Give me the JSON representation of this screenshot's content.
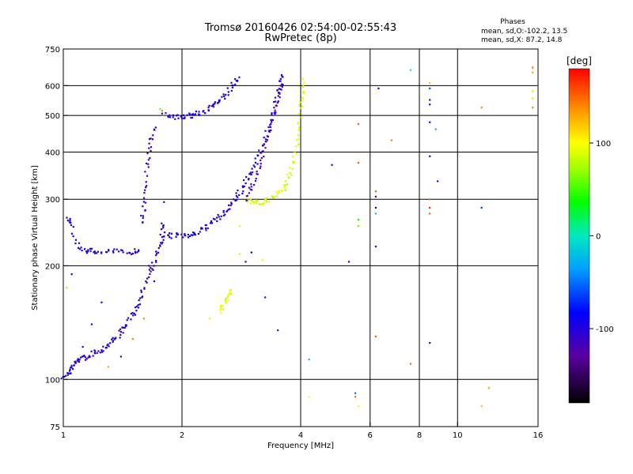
{
  "chart_data": {
    "type": "scatter",
    "title": "Tromsø 20160426 02:54:00-02:55:43",
    "subtitle": "RwPretec (8p)",
    "xlabel": "Frequency [MHz]",
    "ylabel": "Stationary phase Virtual Height [km]",
    "x_scale": "log",
    "y_scale": "log",
    "xlim": [
      1,
      16
    ],
    "ylim": [
      75,
      750
    ],
    "x_ticks": [
      1,
      2,
      4,
      6,
      8,
      10,
      16
    ],
    "y_ticks": [
      75,
      100,
      200,
      300,
      400,
      500,
      600,
      750
    ],
    "x_gridlines": [
      2,
      4,
      6,
      8,
      10
    ],
    "y_gridlines": [
      100,
      200,
      300,
      400,
      500,
      600
    ],
    "grid": true,
    "info": {
      "heading": "Phases",
      "line1": "mean, sd,O:-102.2, 13.5",
      "line2": "mean, sd,X:  87.2, 14.8"
    },
    "colorbar": {
      "label": "[deg]",
      "range": [
        -180,
        180
      ],
      "ticks": [
        {
          "value": 100,
          "label": "100"
        },
        {
          "value": 0,
          "label": "0"
        },
        {
          "value": -100,
          "label": "-100"
        }
      ]
    },
    "colors": {
      "o_mode": "#1e22e6",
      "x_mode": "#f0f014"
    },
    "traces": [
      {
        "mode": "O",
        "phase": -105,
        "points": [
          [
            1.0,
            102
          ],
          [
            1.03,
            104
          ],
          [
            1.06,
            108
          ],
          [
            1.08,
            112
          ],
          [
            1.1,
            113
          ],
          [
            1.15,
            115
          ],
          [
            1.2,
            118
          ],
          [
            1.25,
            120
          ],
          [
            1.3,
            124
          ],
          [
            1.35,
            128
          ],
          [
            1.4,
            133
          ],
          [
            1.45,
            140
          ],
          [
            1.5,
            148
          ],
          [
            1.55,
            160
          ],
          [
            1.6,
            175
          ],
          [
            1.65,
            190
          ],
          [
            1.7,
            205
          ],
          [
            1.75,
            225
          ],
          [
            1.78,
            240
          ],
          [
            1.8,
            262
          ]
        ]
      },
      {
        "mode": "O",
        "phase": -100,
        "points": [
          [
            1.02,
            270
          ],
          [
            1.05,
            255
          ],
          [
            1.1,
            225
          ],
          [
            1.15,
            219
          ],
          [
            1.2,
            218
          ],
          [
            1.3,
            218
          ],
          [
            1.4,
            218
          ],
          [
            1.5,
            218
          ],
          [
            1.55,
            219
          ]
        ]
      },
      {
        "mode": "O",
        "phase": -110,
        "points": [
          [
            1.58,
            262
          ],
          [
            1.6,
            285
          ],
          [
            1.62,
            330
          ],
          [
            1.64,
            385
          ],
          [
            1.67,
            430
          ],
          [
            1.7,
            470
          ]
        ]
      },
      {
        "mode": "O",
        "phase": -100,
        "points": [
          [
            1.8,
            242
          ],
          [
            1.9,
            240
          ],
          [
            2.0,
            240
          ],
          [
            2.1,
            242
          ],
          [
            2.2,
            246
          ],
          [
            2.3,
            252
          ],
          [
            2.4,
            260
          ],
          [
            2.5,
            270
          ],
          [
            2.6,
            282
          ],
          [
            2.7,
            296
          ],
          [
            2.8,
            312
          ],
          [
            2.9,
            332
          ],
          [
            3.0,
            355
          ],
          [
            3.1,
            382
          ],
          [
            3.2,
            415
          ],
          [
            3.3,
            455
          ],
          [
            3.4,
            505
          ],
          [
            3.5,
            565
          ],
          [
            3.55,
            610
          ],
          [
            3.6,
            650
          ]
        ]
      },
      {
        "mode": "O",
        "phase": -120,
        "points": [
          [
            2.9,
            300
          ],
          [
            3.0,
            320
          ],
          [
            3.1,
            350
          ],
          [
            3.2,
            390
          ],
          [
            3.3,
            440
          ],
          [
            3.4,
            500
          ],
          [
            3.5,
            560
          ],
          [
            3.6,
            620
          ]
        ]
      },
      {
        "mode": "O",
        "phase": -100,
        "points": [
          [
            1.8,
            500
          ],
          [
            1.9,
            495
          ],
          [
            2.0,
            495
          ],
          [
            2.1,
            500
          ],
          [
            2.2,
            505
          ],
          [
            2.3,
            515
          ],
          [
            2.4,
            530
          ],
          [
            2.5,
            550
          ],
          [
            2.6,
            575
          ],
          [
            2.7,
            605
          ],
          [
            2.8,
            630
          ]
        ]
      },
      {
        "mode": "X",
        "phase": 88,
        "points": [
          [
            2.95,
            297
          ],
          [
            3.05,
            294
          ],
          [
            3.15,
            294
          ],
          [
            3.3,
            298
          ],
          [
            3.45,
            305
          ],
          [
            3.6,
            318
          ],
          [
            3.7,
            335
          ],
          [
            3.8,
            365
          ],
          [
            3.9,
            410
          ],
          [
            3.95,
            460
          ],
          [
            4.0,
            520
          ],
          [
            4.02,
            570
          ],
          [
            4.05,
            630
          ]
        ]
      },
      {
        "mode": "X",
        "phase": 88,
        "points": [
          [
            2.5,
            150
          ],
          [
            2.55,
            158
          ],
          [
            2.6,
            165
          ],
          [
            2.65,
            172
          ]
        ]
      }
    ],
    "scatter": [
      {
        "x": 1.02,
        "y": 175,
        "phase": 120
      },
      {
        "x": 1.05,
        "y": 190,
        "phase": -100
      },
      {
        "x": 1.12,
        "y": 122,
        "phase": -100
      },
      {
        "x": 1.18,
        "y": 140,
        "phase": -105
      },
      {
        "x": 1.25,
        "y": 160,
        "phase": -100
      },
      {
        "x": 1.3,
        "y": 108,
        "phase": 130
      },
      {
        "x": 1.4,
        "y": 115,
        "phase": -110
      },
      {
        "x": 1.5,
        "y": 128,
        "phase": 140
      },
      {
        "x": 1.55,
        "y": 155,
        "phase": -100
      },
      {
        "x": 1.6,
        "y": 145,
        "phase": 140
      },
      {
        "x": 1.65,
        "y": 200,
        "phase": -100
      },
      {
        "x": 1.7,
        "y": 182,
        "phase": -105
      },
      {
        "x": 1.72,
        "y": 218,
        "phase": -110
      },
      {
        "x": 1.76,
        "y": 520,
        "phase": 60
      },
      {
        "x": 1.78,
        "y": 515,
        "phase": 140
      },
      {
        "x": 1.8,
        "y": 295,
        "phase": -100
      },
      {
        "x": 2.35,
        "y": 145,
        "phase": 88
      },
      {
        "x": 2.8,
        "y": 255,
        "phase": 95
      },
      {
        "x": 2.8,
        "y": 215,
        "phase": 88
      },
      {
        "x": 2.9,
        "y": 205,
        "phase": -140
      },
      {
        "x": 3.0,
        "y": 217,
        "phase": -160
      },
      {
        "x": 3.2,
        "y": 207,
        "phase": 90
      },
      {
        "x": 3.25,
        "y": 165,
        "phase": -130
      },
      {
        "x": 3.5,
        "y": 135,
        "phase": -130
      },
      {
        "x": 4.2,
        "y": 113,
        "phase": -20
      },
      {
        "x": 4.2,
        "y": 90,
        "phase": 100
      },
      {
        "x": 4.8,
        "y": 370,
        "phase": -110
      },
      {
        "x": 5.5,
        "y": 90,
        "phase": 150
      },
      {
        "x": 5.5,
        "y": 92,
        "phase": -50
      },
      {
        "x": 5.6,
        "y": 475,
        "phase": 150
      },
      {
        "x": 5.6,
        "y": 375,
        "phase": 150
      },
      {
        "x": 5.6,
        "y": 265,
        "phase": 40
      },
      {
        "x": 5.6,
        "y": 255,
        "phase": 60
      },
      {
        "x": 5.6,
        "y": 85,
        "phase": 100
      },
      {
        "x": 5.3,
        "y": 205,
        "phase": -100
      },
      {
        "x": 6.2,
        "y": 315,
        "phase": 150
      },
      {
        "x": 6.2,
        "y": 305,
        "phase": -110
      },
      {
        "x": 6.2,
        "y": 285,
        "phase": -90
      },
      {
        "x": 6.2,
        "y": 275,
        "phase": -20
      },
      {
        "x": 6.2,
        "y": 225,
        "phase": -110
      },
      {
        "x": 6.2,
        "y": 130,
        "phase": 150
      },
      {
        "x": 6.8,
        "y": 430,
        "phase": 140
      },
      {
        "x": 6.3,
        "y": 590,
        "phase": -100
      },
      {
        "x": 7.6,
        "y": 660,
        "phase": 0
      },
      {
        "x": 7.6,
        "y": 110,
        "phase": 150
      },
      {
        "x": 8.5,
        "y": 610,
        "phase": 120
      },
      {
        "x": 8.5,
        "y": 590,
        "phase": -60
      },
      {
        "x": 8.5,
        "y": 550,
        "phase": -105
      },
      {
        "x": 8.5,
        "y": 535,
        "phase": -105
      },
      {
        "x": 8.5,
        "y": 480,
        "phase": -80
      },
      {
        "x": 8.5,
        "y": 390,
        "phase": -120
      },
      {
        "x": 8.5,
        "y": 300,
        "phase": 150
      },
      {
        "x": 8.5,
        "y": 285,
        "phase": 170
      },
      {
        "x": 8.5,
        "y": 275,
        "phase": 150
      },
      {
        "x": 8.5,
        "y": 125,
        "phase": -110
      },
      {
        "x": 8.8,
        "y": 460,
        "phase": -20
      },
      {
        "x": 8.9,
        "y": 335,
        "phase": -110
      },
      {
        "x": 11.5,
        "y": 525,
        "phase": 140
      },
      {
        "x": 11.5,
        "y": 285,
        "phase": -70
      },
      {
        "x": 11.5,
        "y": 85,
        "phase": 120
      },
      {
        "x": 12.0,
        "y": 95,
        "phase": 130
      },
      {
        "x": 15.5,
        "y": 670,
        "phase": 150
      },
      {
        "x": 15.5,
        "y": 650,
        "phase": 130
      },
      {
        "x": 15.5,
        "y": 580,
        "phase": 110
      },
      {
        "x": 15.5,
        "y": 555,
        "phase": 110
      },
      {
        "x": 15.5,
        "y": 525,
        "phase": 140
      }
    ]
  }
}
